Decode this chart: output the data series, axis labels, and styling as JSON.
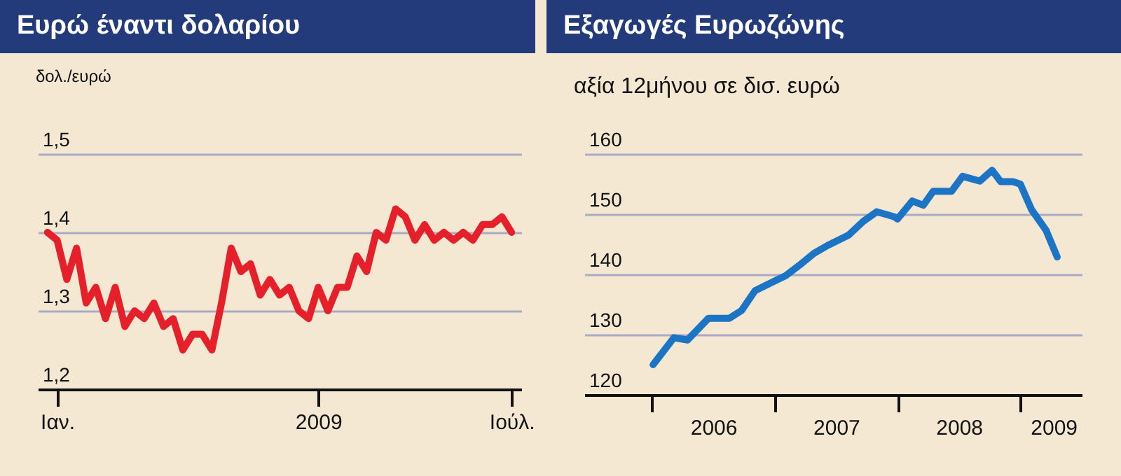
{
  "chart_data": [
    {
      "type": "line",
      "title": "Ευρώ έναντι δολαρίου",
      "ylabel": "δολ./ευρώ",
      "color": "#e5202a",
      "grid": "y",
      "ylim": [
        1.2,
        1.5
      ],
      "yticks": [
        {
          "value": 1.2,
          "label": "1,2"
        },
        {
          "value": 1.3,
          "label": "1,3"
        },
        {
          "value": 1.4,
          "label": "1,4"
        },
        {
          "value": 1.5,
          "label": "1,5"
        }
      ],
      "categories": [
        null,
        "Ιαν.",
        null,
        null,
        null,
        null,
        null,
        null,
        null,
        null,
        null,
        null,
        null,
        null,
        null,
        null,
        null,
        null,
        null,
        null,
        null,
        null,
        null,
        null,
        null,
        null,
        null,
        null,
        "2009",
        null,
        null,
        null,
        null,
        null,
        null,
        null,
        null,
        null,
        null,
        null,
        null,
        null,
        null,
        null,
        null,
        null,
        null,
        null,
        "Ιούλ."
      ],
      "values": [
        1.4,
        1.39,
        1.34,
        1.38,
        1.31,
        1.33,
        1.29,
        1.33,
        1.28,
        1.3,
        1.29,
        1.31,
        1.28,
        1.29,
        1.25,
        1.27,
        1.27,
        1.25,
        1.31,
        1.38,
        1.35,
        1.36,
        1.32,
        1.34,
        1.32,
        1.33,
        1.3,
        1.29,
        1.33,
        1.3,
        1.33,
        1.33,
        1.37,
        1.35,
        1.4,
        1.39,
        1.43,
        1.42,
        1.39,
        1.41,
        1.39,
        1.4,
        1.39,
        1.4,
        1.39,
        1.41,
        1.41,
        1.42,
        1.4
      ]
    },
    {
      "type": "line",
      "title": "Εξαγωγές Ευρωζώνης",
      "ylabel": "αξία 12μήνου σε δισ. ευρώ",
      "color": "#1c74c4",
      "grid": "y",
      "xlim": [
        2005.45,
        2009.5
      ],
      "ylim": [
        120,
        160
      ],
      "xticks": [
        {
          "value": 2006,
          "label": null
        },
        {
          "value": 2006.5,
          "label": "2006"
        },
        {
          "value": 2007,
          "label": null
        },
        {
          "value": 2007.5,
          "label": "2007"
        },
        {
          "value": 2008,
          "label": null
        },
        {
          "value": 2008.5,
          "label": "2008"
        },
        {
          "value": 2009,
          "label": null
        },
        {
          "value": 2009.27,
          "label": "2009"
        }
      ],
      "yticks": [
        120,
        130,
        140,
        150,
        160
      ],
      "x": [
        2006.01,
        2006.18,
        2006.29,
        2006.46,
        2006.63,
        2006.73,
        2006.84,
        2006.97,
        2007.09,
        2007.2,
        2007.32,
        2007.43,
        2007.6,
        2007.72,
        2007.83,
        2007.97,
        2008.0,
        2008.12,
        2008.21,
        2008.29,
        2008.44,
        2008.53,
        2008.67,
        2008.77,
        2008.84,
        2008.94,
        2009.0,
        2009.09,
        2009.21,
        2009.3
      ],
      "values": [
        125.0,
        129.5,
        129.1,
        132.7,
        132.7,
        134.0,
        137.3,
        138.6,
        139.8,
        141.5,
        143.5,
        144.8,
        146.5,
        148.8,
        150.4,
        149.6,
        149.2,
        152.2,
        151.5,
        153.8,
        153.8,
        156.3,
        155.5,
        157.3,
        155.4,
        155.4,
        155.0,
        150.8,
        147.3,
        142.9
      ]
    }
  ]
}
